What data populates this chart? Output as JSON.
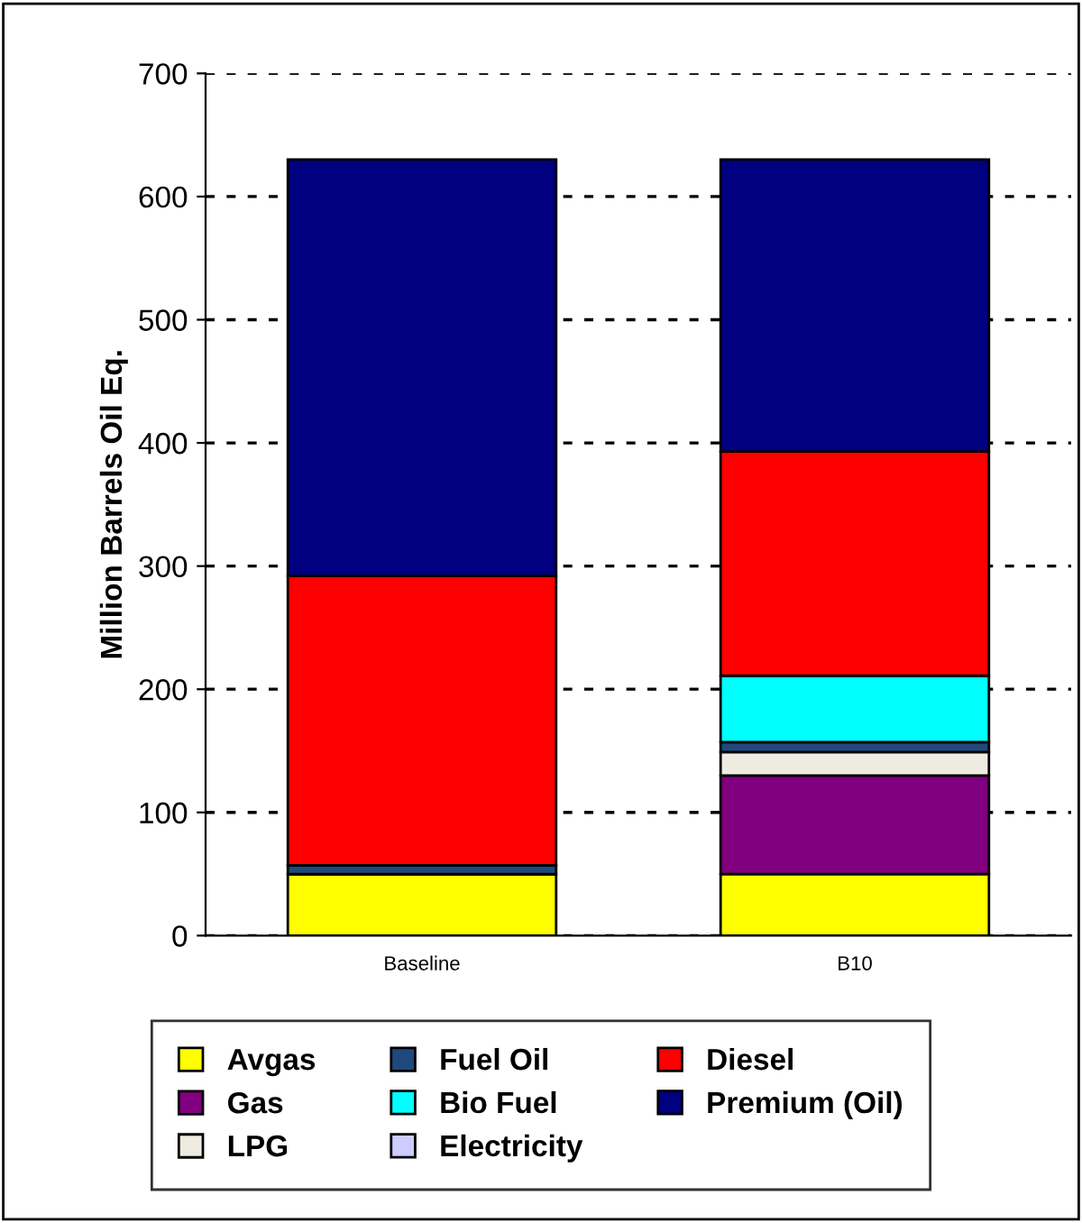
{
  "chart_data": {
    "type": "bar",
    "stacked": true,
    "ylabel": "Million Barrels Oil Eq.",
    "categories": [
      "Baseline",
      "B10"
    ],
    "series": [
      {
        "name": "Avgas",
        "color": "#ffff00",
        "values": [
          50,
          50
        ]
      },
      {
        "name": "Gas",
        "color": "#800080",
        "values": [
          0,
          80
        ]
      },
      {
        "name": "LPG",
        "color": "#eeece1",
        "values": [
          0,
          19
        ]
      },
      {
        "name": "Fuel Oil",
        "color": "#1f497d",
        "values": [
          7,
          8
        ]
      },
      {
        "name": "Bio Fuel",
        "color": "#00ffff",
        "values": [
          0,
          54
        ]
      },
      {
        "name": "Electricity",
        "color": "#ccccff",
        "values": [
          0,
          0
        ]
      },
      {
        "name": "Diesel",
        "color": "#ff0000",
        "values": [
          235,
          182
        ]
      },
      {
        "name": "Premium (Oil)",
        "color": "#000080",
        "values": [
          338,
          237
        ]
      }
    ],
    "ylim": [
      0,
      700
    ],
    "yticks": [
      0,
      100,
      200,
      300,
      400,
      500,
      600,
      700
    ],
    "grid": "y",
    "legend": "bottom"
  }
}
